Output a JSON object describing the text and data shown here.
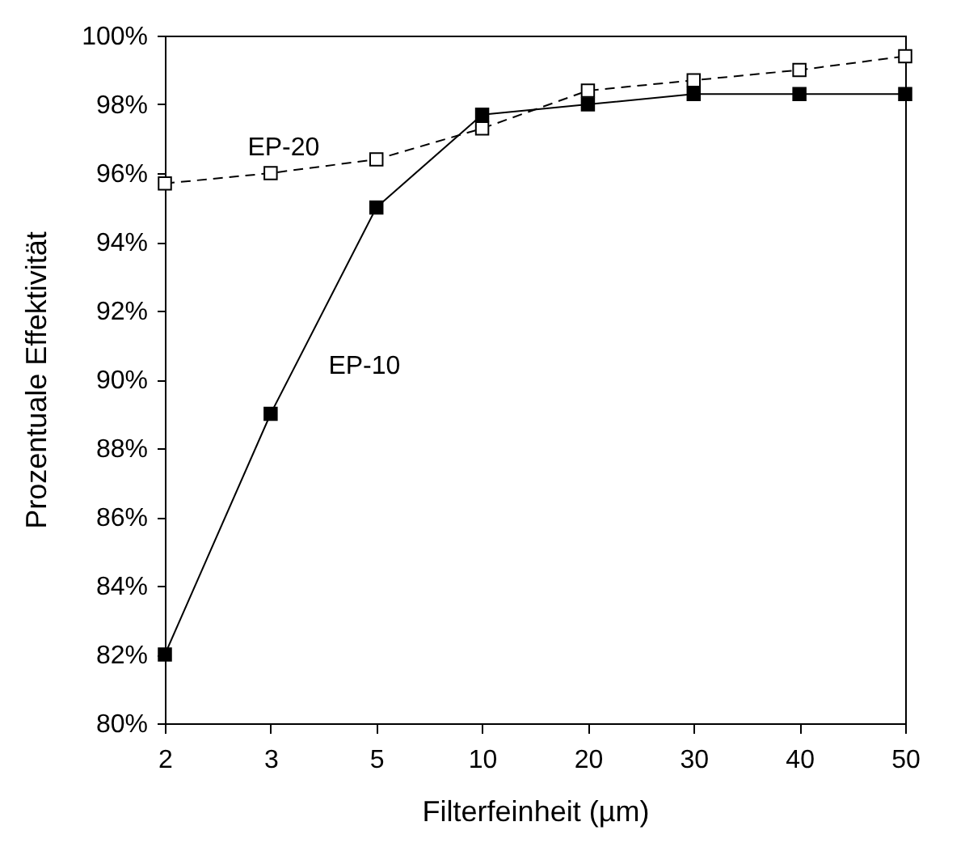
{
  "chart_data": {
    "type": "line",
    "xlabel": "Filterfeinheit (µm)",
    "ylabel": "Prozentuale Effektivität",
    "categories": [
      "2",
      "3",
      "5",
      "10",
      "20",
      "30",
      "40",
      "50"
    ],
    "series": [
      {
        "name": "EP-10",
        "color": "#000000",
        "line_style": "solid",
        "values": [
          82,
          89,
          95.0,
          97.7,
          98.0,
          98.3,
          98.3,
          98.3
        ]
      },
      {
        "name": "EP-20",
        "color": "#000000",
        "line_style": "dashed",
        "values": [
          95.7,
          96.0,
          96.4,
          97.3,
          98.4,
          98.7,
          99.0,
          99.4
        ]
      }
    ],
    "ylim": [
      80,
      100
    ],
    "yticks": [
      {
        "value": 80,
        "label": "80%"
      },
      {
        "value": 82,
        "label": "82%"
      },
      {
        "value": 84,
        "label": "84%"
      },
      {
        "value": 86,
        "label": "86%"
      },
      {
        "value": 88,
        "label": "88%"
      },
      {
        "value": 90,
        "label": "90%"
      },
      {
        "value": 92,
        "label": "92%"
      },
      {
        "value": 94,
        "label": "94%"
      },
      {
        "value": 96,
        "label": "96%"
      },
      {
        "value": 98,
        "label": "98%"
      },
      {
        "value": 100,
        "label": "100%"
      }
    ],
    "grid": false,
    "legend": false,
    "marker": "square"
  }
}
